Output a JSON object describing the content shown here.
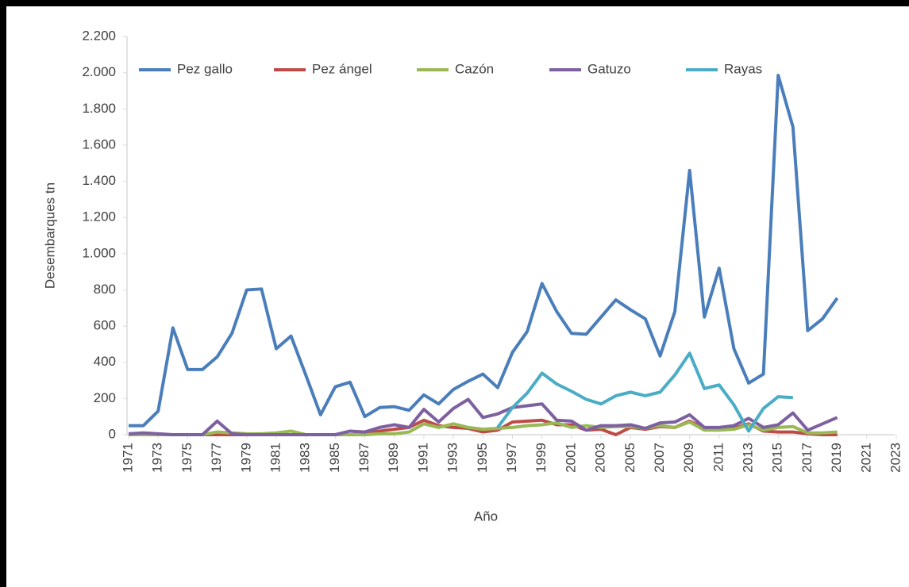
{
  "chart_data": {
    "type": "line",
    "x": [
      1971,
      1972,
      1973,
      1974,
      1975,
      1976,
      1977,
      1978,
      1979,
      1980,
      1981,
      1982,
      1983,
      1984,
      1985,
      1986,
      1987,
      1988,
      1989,
      1990,
      1991,
      1992,
      1993,
      1994,
      1995,
      1996,
      1997,
      1998,
      1999,
      2000,
      2001,
      2002,
      2003,
      2004,
      2005,
      2006,
      2007,
      2008,
      2009,
      2010,
      2011,
      2012,
      2013,
      2014,
      2015,
      2016,
      2017,
      2018,
      2019
    ],
    "series": [
      {
        "name": "Pez gallo",
        "color": "#4a7ebb",
        "values": [
          50,
          50,
          130,
          590,
          360,
          360,
          430,
          560,
          800,
          805,
          475,
          545,
          330,
          110,
          265,
          290,
          100,
          150,
          155,
          135,
          220,
          170,
          250,
          295,
          335,
          260,
          455,
          570,
          835,
          680,
          560,
          555,
          650,
          745,
          690,
          640,
          435,
          680,
          1460,
          650,
          920,
          475,
          285,
          335,
          1985,
          1700,
          575,
          640,
          755
        ]
      },
      {
        "name": "Pez ángel",
        "color": "#be4b48",
        "values": [
          0,
          0,
          0,
          0,
          0,
          0,
          0,
          0,
          0,
          0,
          0,
          0,
          0,
          0,
          0,
          0,
          5,
          20,
          30,
          40,
          80,
          50,
          40,
          35,
          15,
          25,
          70,
          75,
          80,
          55,
          55,
          25,
          30,
          0,
          40,
          30,
          45,
          40,
          75,
          35,
          30,
          35,
          60,
          20,
          15,
          15,
          5,
          0,
          0
        ]
      },
      {
        "name": "Cazón",
        "color": "#98b954",
        "values": [
          0,
          0,
          0,
          0,
          0,
          0,
          15,
          10,
          5,
          5,
          10,
          20,
          0,
          0,
          0,
          0,
          0,
          5,
          5,
          15,
          60,
          40,
          60,
          40,
          30,
          35,
          40,
          50,
          55,
          65,
          40,
          50,
          40,
          45,
          45,
          35,
          50,
          40,
          70,
          25,
          25,
          30,
          55,
          25,
          40,
          45,
          10,
          10,
          15
        ]
      },
      {
        "name": "Gatuzo",
        "color": "#7d60a0",
        "values": [
          5,
          10,
          5,
          0,
          0,
          0,
          75,
          5,
          0,
          0,
          0,
          0,
          0,
          0,
          0,
          20,
          15,
          40,
          55,
          40,
          140,
          70,
          145,
          195,
          95,
          115,
          150,
          160,
          170,
          80,
          75,
          25,
          50,
          50,
          55,
          35,
          65,
          70,
          110,
          40,
          40,
          50,
          90,
          40,
          55,
          120,
          25,
          60,
          95
        ]
      },
      {
        "name": "Rayas",
        "color": "#4bacc6",
        "values": [
          null,
          null,
          null,
          null,
          null,
          null,
          null,
          null,
          null,
          null,
          null,
          null,
          null,
          null,
          null,
          null,
          null,
          null,
          null,
          null,
          null,
          null,
          null,
          null,
          null,
          40,
          150,
          230,
          340,
          280,
          240,
          195,
          170,
          215,
          235,
          215,
          235,
          330,
          450,
          255,
          275,
          165,
          20,
          145,
          210,
          205,
          null,
          null,
          null
        ]
      }
    ],
    "xlabel": "Año",
    "ylabel": "Desembarques tn",
    "xlim": [
      1971,
      2023
    ],
    "xticks": [
      1971,
      1973,
      1975,
      1977,
      1979,
      1981,
      1983,
      1985,
      1987,
      1989,
      1991,
      1993,
      1995,
      1997,
      1999,
      2001,
      2003,
      2005,
      2007,
      2009,
      2011,
      2013,
      2015,
      2017,
      2019,
      2021,
      2023
    ],
    "ylim": [
      0,
      2200
    ],
    "yticks": [
      0,
      200,
      400,
      600,
      800,
      {
        "value": 1000,
        "label": "1.000"
      },
      {
        "value": 1200,
        "label": "1.200"
      },
      {
        "value": 1400,
        "label": "1.400"
      },
      {
        "value": 1600,
        "label": "1.600"
      },
      {
        "value": 1800,
        "label": "1.800"
      },
      {
        "value": 2000,
        "label": "2.000"
      },
      {
        "value": 2200,
        "label": "2.200"
      }
    ],
    "legend": "top"
  }
}
